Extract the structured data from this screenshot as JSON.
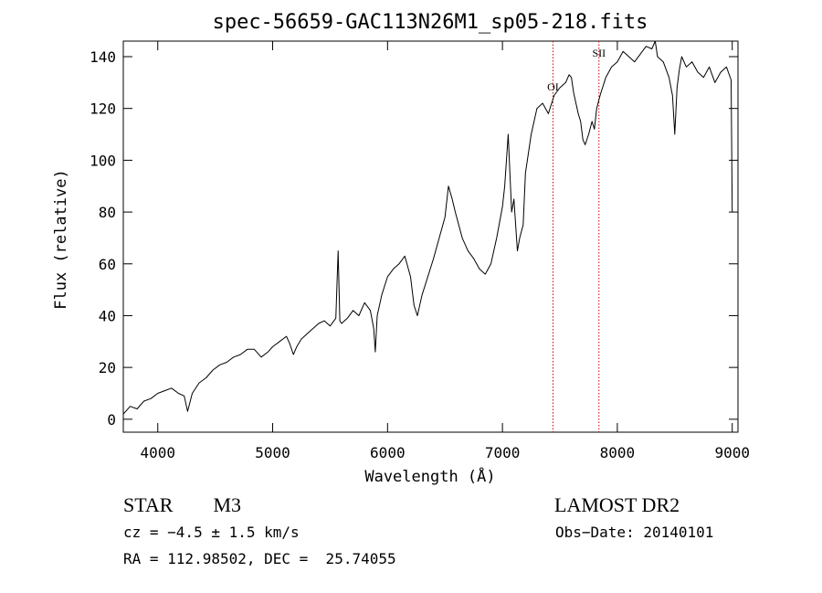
{
  "chart_data": {
    "type": "line",
    "title": "spec-56659-GAC113N26M1_sp05-218.fits",
    "xlabel": "Wavelength (Å)",
    "ylabel": "Flux (relative)",
    "xlim": [
      3700,
      9050
    ],
    "ylim": [
      -5,
      146
    ],
    "xticks": [
      4000,
      5000,
      6000,
      7000,
      8000,
      9000
    ],
    "yticks": [
      0,
      20,
      40,
      60,
      80,
      100,
      120,
      140
    ],
    "series": [
      {
        "name": "flux",
        "color": "#000000",
        "x": [
          3700,
          3760,
          3820,
          3880,
          3940,
          4000,
          4060,
          4120,
          4180,
          4230,
          4260,
          4300,
          4360,
          4420,
          4480,
          4540,
          4600,
          4660,
          4720,
          4780,
          4840,
          4900,
          4960,
          5000,
          5060,
          5120,
          5150,
          5180,
          5210,
          5250,
          5300,
          5350,
          5400,
          5450,
          5500,
          5550,
          5570,
          5585,
          5600,
          5650,
          5700,
          5750,
          5800,
          5850,
          5880,
          5893,
          5910,
          5950,
          6000,
          6050,
          6100,
          6150,
          6200,
          6230,
          6260,
          6300,
          6350,
          6400,
          6450,
          6500,
          6530,
          6563,
          6590,
          6620,
          6650,
          6700,
          6750,
          6800,
          6850,
          6900,
          6950,
          7000,
          7020,
          7050,
          7080,
          7100,
          7130,
          7150,
          7180,
          7200,
          7250,
          7300,
          7350,
          7400,
          7450,
          7500,
          7550,
          7580,
          7600,
          7620,
          7640,
          7660,
          7680,
          7700,
          7720,
          7750,
          7780,
          7800,
          7820,
          7850,
          7900,
          7950,
          8000,
          8050,
          8100,
          8150,
          8200,
          8250,
          8300,
          8330,
          8350,
          8400,
          8450,
          8480,
          8500,
          8520,
          8540,
          8560,
          8600,
          8650,
          8700,
          8750,
          8800,
          8850,
          8900,
          8950,
          8990,
          9000
        ],
        "y": [
          2,
          5,
          4,
          7,
          8,
          10,
          11,
          12,
          10,
          9,
          3,
          10,
          14,
          16,
          19,
          21,
          22,
          24,
          25,
          27,
          27,
          24,
          26,
          28,
          30,
          32,
          29,
          25,
          28,
          31,
          33,
          35,
          37,
          38,
          36,
          39,
          65,
          38,
          37,
          39,
          42,
          40,
          45,
          42,
          35,
          26,
          40,
          48,
          55,
          58,
          60,
          63,
          55,
          44,
          40,
          48,
          55,
          62,
          70,
          78,
          90,
          85,
          80,
          75,
          70,
          65,
          62,
          58,
          56,
          60,
          70,
          82,
          90,
          110,
          80,
          85,
          65,
          70,
          75,
          95,
          110,
          120,
          122,
          118,
          125,
          128,
          130,
          133,
          132,
          126,
          122,
          118,
          115,
          108,
          106,
          110,
          115,
          112,
          120,
          125,
          132,
          136,
          138,
          142,
          140,
          138,
          141,
          144,
          143,
          146,
          140,
          138,
          132,
          125,
          110,
          128,
          135,
          140,
          136,
          138,
          134,
          132,
          136,
          130,
          134,
          136,
          131,
          80
        ]
      }
    ],
    "annotations": [
      {
        "label": "OI",
        "x": 7440,
        "label_y": 127
      },
      {
        "label": "SII",
        "x": 7840,
        "label_y": 140
      }
    ]
  },
  "info": {
    "object_class": "STAR",
    "subclass": "M3",
    "cz": "cz = −4.5 ± 1.5 km/s",
    "coords": "RA = 112.98502, DEC =  25.74055",
    "survey": "LAMOST DR2",
    "obs_date": "Obs−Date: 20140101"
  }
}
